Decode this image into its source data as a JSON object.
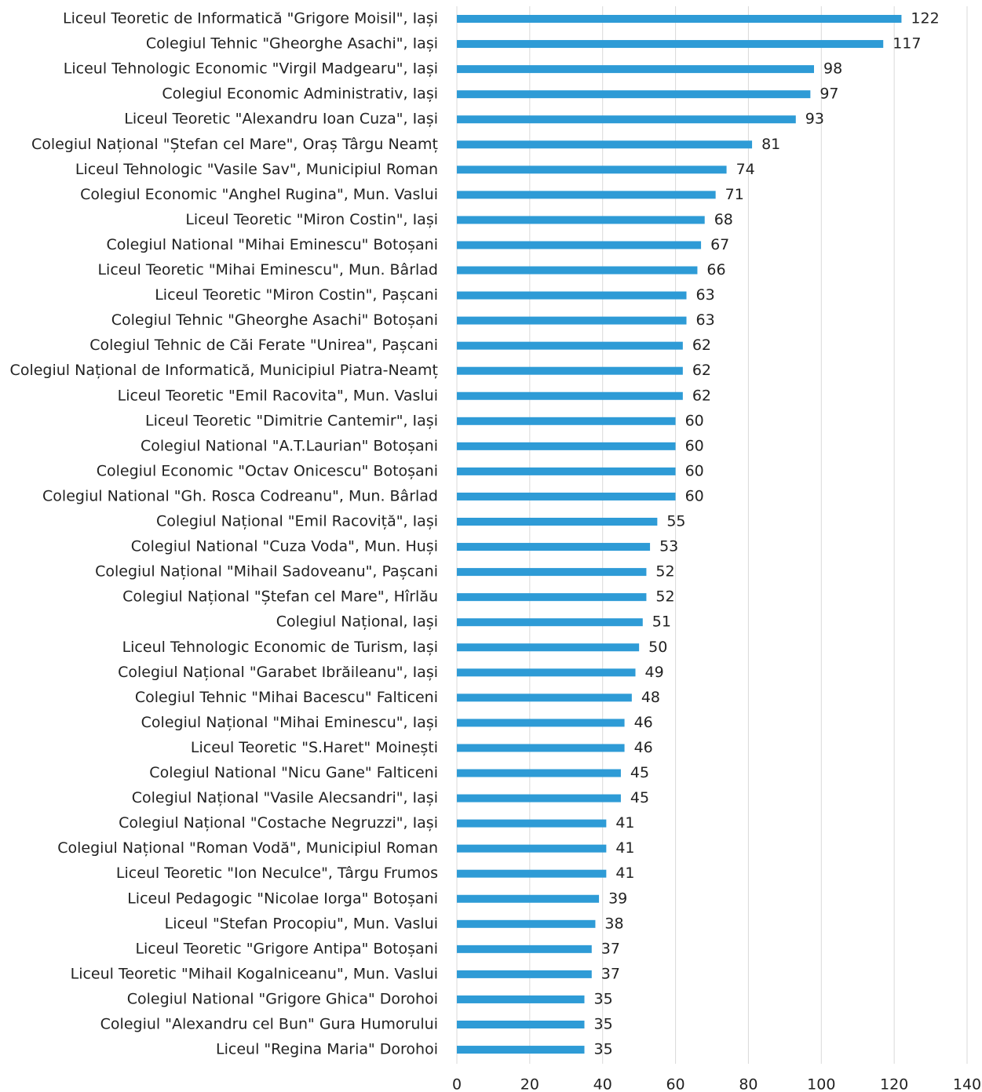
{
  "chart_data": {
    "type": "bar",
    "orientation": "horizontal",
    "color": "#2e9bd6",
    "grid": true,
    "categories": [
      "Liceul Teoretic de Informatică \"Grigore Moisil\", Iași",
      "Colegiul Tehnic \"Gheorghe Asachi\", Iași",
      "Liceul Tehnologic Economic \"Virgil Madgearu\", Iași",
      "Colegiul Economic Administrativ, Iași",
      "Liceul Teoretic \"Alexandru Ioan Cuza\", Iași",
      "Colegiul Național \"Ștefan cel Mare\", Oraș Târgu Neamț",
      "Liceul Tehnologic \"Vasile Sav\", Municipiul Roman",
      "Colegiul Economic \"Anghel Rugina\", Mun. Vaslui",
      "Liceul Teoretic \"Miron Costin\", Iași",
      "Colegiul National \"Mihai Eminescu\" Botoșani",
      "Liceul Teoretic \"Mihai Eminescu\", Mun. Bârlad",
      "Liceul Teoretic \"Miron Costin\", Pașcani",
      "Colegiul Tehnic \"Gheorghe Asachi\" Botoșani",
      "Colegiul Tehnic de Căi Ferate \"Unirea\", Pașcani",
      "Colegiul Național de Informatică, Municipiul Piatra-Neamț",
      "Liceul Teoretic \"Emil Racovita\", Mun. Vaslui",
      "Liceul Teoretic \"Dimitrie Cantemir\", Iași",
      "Colegiul National \"A.T.Laurian\" Botoșani",
      "Colegiul Economic \"Octav Onicescu\" Botoșani",
      "Colegiul National \"Gh. Rosca Codreanu\", Mun. Bârlad",
      "Colegiul Național \"Emil Racoviță\", Iași",
      "Colegiul National \"Cuza Voda\", Mun. Huși",
      "Colegiul Național \"Mihail Sadoveanu\", Pașcani",
      "Colegiul Național \"Ștefan cel Mare\", Hîrlău",
      "Colegiul Național, Iași",
      "Liceul Tehnologic Economic de Turism, Iași",
      "Colegiul Național \"Garabet Ibrăileanu\", Iași",
      "Colegiul Tehnic \"Mihai Bacescu\" Falticeni",
      "Colegiul Național \"Mihai Eminescu\", Iași",
      "Liceul Teoretic \"S.Haret\" Moinești",
      "Colegiul National \"Nicu Gane\" Falticeni",
      "Colegiul Național \"Vasile Alecsandri\", Iași",
      "Colegiul Național \"Costache Negruzzi\", Iași",
      "Colegiul Național \"Roman Vodă\", Municipiul Roman",
      "Liceul Teoretic \"Ion Neculce\", Târgu Frumos",
      "Liceul Pedagogic \"Nicolae Iorga\" Botoșani",
      "Liceul \"Stefan Procopiu\", Mun. Vaslui",
      "Liceul Teoretic \"Grigore Antipa\" Botoșani",
      "Liceul Teoretic \"Mihail Kogalniceanu\", Mun. Vaslui",
      "Colegiul National \"Grigore Ghica\" Dorohoi",
      "Colegiul \"Alexandru cel Bun\" Gura Humorului",
      "Liceul \"Regina Maria\" Dorohoi"
    ],
    "values": [
      122,
      117,
      98,
      97,
      93,
      81,
      74,
      71,
      68,
      67,
      66,
      63,
      63,
      62,
      62,
      62,
      60,
      60,
      60,
      60,
      55,
      53,
      52,
      52,
      51,
      50,
      49,
      48,
      46,
      46,
      45,
      45,
      41,
      41,
      41,
      39,
      38,
      37,
      37,
      35,
      35,
      35
    ],
    "xlim": [
      0,
      140
    ],
    "xticks": [
      0,
      20,
      40,
      60,
      80,
      100,
      120,
      140
    ]
  }
}
